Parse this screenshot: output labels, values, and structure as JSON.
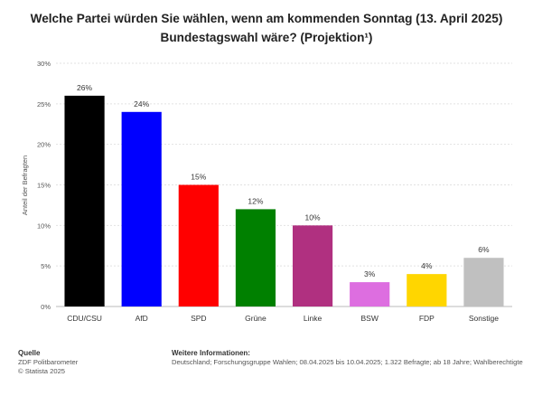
{
  "chart_data": {
    "type": "bar",
    "title": "Welche Partei würden Sie wählen, wenn am kommenden Sonntag (13. April 2025) Bundestagswahl wäre? (Projektion¹)",
    "ylabel": "Anteil der Befragten",
    "xlabel": "",
    "ylim": [
      0,
      30
    ],
    "yticks": [
      "0%",
      "5%",
      "10%",
      "15%",
      "20%",
      "25%",
      "30%"
    ],
    "ytick_values": [
      0,
      5,
      10,
      15,
      20,
      25,
      30
    ],
    "grid": true,
    "categories": [
      "CDU/CSU",
      "AfD",
      "SPD",
      "Grüne",
      "Linke",
      "BSW",
      "FDP",
      "Sonstige"
    ],
    "values": [
      26,
      24,
      15,
      12,
      10,
      3,
      4,
      6
    ],
    "value_labels": [
      "26%",
      "24%",
      "15%",
      "12%",
      "10%",
      "3%",
      "4%",
      "6%"
    ],
    "colors": [
      "#000000",
      "#0000ff",
      "#ff0000",
      "#008000",
      "#b03080",
      "#dd6ee0",
      "#ffd600",
      "#c0c0c0"
    ]
  },
  "footer": {
    "source_heading": "Quelle",
    "source_lines": [
      "ZDF Politbarometer",
      "© Statista 2025"
    ],
    "info_heading": "Weitere Informationen:",
    "info_text": "Deutschland; Forschungsgruppe Wahlen; 08.04.2025 bis 10.04.2025; 1.322 Befragte; ab 18 Jahre; Wahlberechtigte"
  }
}
